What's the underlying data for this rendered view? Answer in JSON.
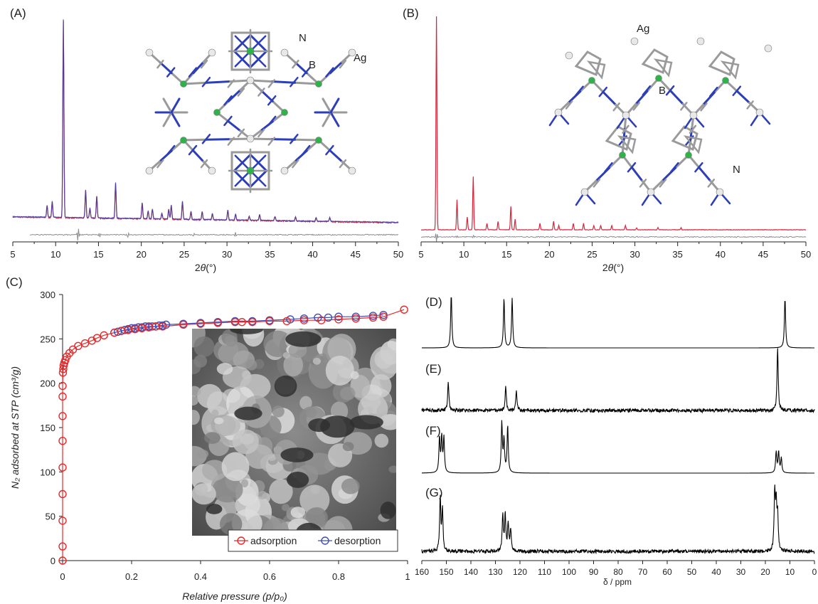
{
  "chart_data": [
    {
      "panel": "(A)",
      "type": "line",
      "xlabel_prefix": "2",
      "xlabel_theta": "θ",
      "xlabel_unit": "(°)",
      "xticks": [
        "5",
        "10",
        "15",
        "20",
        "25",
        "30",
        "35",
        "40",
        "45",
        "50"
      ],
      "xlim": [
        5,
        50
      ],
      "y_visible": false,
      "series": [
        {
          "color": "#d8253a",
          "peaks": [
            [
              9.0,
              0.06
            ],
            [
              9.6,
              0.08
            ],
            [
              10.9,
              1.0
            ],
            [
              13.5,
              0.14
            ],
            [
              14.0,
              0.05
            ],
            [
              14.8,
              0.11
            ],
            [
              17.0,
              0.18
            ],
            [
              20.1,
              0.08
            ],
            [
              20.8,
              0.04
            ],
            [
              21.3,
              0.05
            ],
            [
              22.4,
              0.03
            ],
            [
              23.2,
              0.05
            ],
            [
              23.5,
              0.07
            ],
            [
              24.8,
              0.09
            ],
            [
              25.8,
              0.04
            ],
            [
              27.1,
              0.04
            ],
            [
              28.3,
              0.03
            ],
            [
              30.1,
              0.05
            ],
            [
              31.0,
              0.03
            ],
            [
              32.6,
              0.02
            ],
            [
              33.8,
              0.03
            ],
            [
              35.6,
              0.02
            ],
            [
              38.0,
              0.02
            ],
            [
              40.4,
              0.02
            ],
            [
              42.0,
              0.02
            ]
          ]
        },
        {
          "color": "#2d40b4"
        }
      ],
      "residual_color": "#8c8c8c",
      "structure_labels": [
        "N",
        "B",
        "Ag"
      ],
      "structure_colors": {
        "metal": "#e8e8e8",
        "boron": "#2db34a",
        "nitrogen": "#2c3eb8",
        "carbon": "#9a9a9a"
      }
    },
    {
      "panel": "(B)",
      "type": "line",
      "xlabel_prefix": "2",
      "xlabel_theta": "θ",
      "xlabel_unit": "(°)",
      "xticks": [
        "5",
        "10",
        "15",
        "20",
        "25",
        "30",
        "35",
        "40",
        "45",
        "50"
      ],
      "xlim": [
        5,
        50
      ],
      "y_visible": false,
      "series": [
        {
          "color": "#d8253a",
          "peaks": [
            [
              6.8,
              1.0
            ],
            [
              9.2,
              0.14
            ],
            [
              10.4,
              0.06
            ],
            [
              11.1,
              0.25
            ],
            [
              12.7,
              0.03
            ],
            [
              14.0,
              0.04
            ],
            [
              15.5,
              0.11
            ],
            [
              16.0,
              0.05
            ],
            [
              18.9,
              0.03
            ],
            [
              20.5,
              0.04
            ],
            [
              21.1,
              0.02
            ],
            [
              22.8,
              0.03
            ],
            [
              24.0,
              0.03
            ],
            [
              25.2,
              0.02
            ],
            [
              26.0,
              0.02
            ],
            [
              27.3,
              0.02
            ],
            [
              28.9,
              0.02
            ],
            [
              30.2,
              0.01
            ],
            [
              32.7,
              0.01
            ],
            [
              35.4,
              0.01
            ]
          ]
        }
      ],
      "residual_color": "#8c8c8c",
      "structure_labels": [
        "Ag",
        "B",
        "N"
      ]
    },
    {
      "panel": "(C)",
      "type": "scatter",
      "ylabel": "N₂ adsorbed at STP (cm³/g)",
      "xlabel": "Relative pressure (p/p₀)",
      "xlim": [
        0,
        1
      ],
      "ylim": [
        0,
        300
      ],
      "xticks": [
        "0",
        "0.2",
        "0.4",
        "0.6",
        "0.8",
        "1"
      ],
      "yticks": [
        "0",
        "50",
        "100",
        "150",
        "200",
        "250",
        "300"
      ],
      "legend_position": "bottom-right",
      "series": [
        {
          "name": "adsorption",
          "color": "#e8282a",
          "x": [
            0.0,
            0.0,
            0.0,
            0.0,
            0.0,
            0.0,
            0.0,
            0.0,
            0.0,
            0.001,
            0.002,
            0.003,
            0.005,
            0.008,
            0.012,
            0.02,
            0.03,
            0.045,
            0.065,
            0.085,
            0.1,
            0.12,
            0.15,
            0.17,
            0.19,
            0.21,
            0.23,
            0.25,
            0.27,
            0.29,
            0.35,
            0.4,
            0.45,
            0.5,
            0.52,
            0.55,
            0.6,
            0.65,
            0.7,
            0.75,
            0.8,
            0.85,
            0.9,
            0.93,
            0.99
          ],
          "y": [
            0,
            16,
            45,
            75,
            105,
            135,
            163,
            185,
            197,
            212,
            216,
            220,
            223,
            226,
            230,
            234,
            238,
            242,
            245,
            248,
            251,
            254,
            257,
            259,
            260,
            261,
            262,
            263,
            264,
            264,
            266,
            267,
            268,
            269,
            269,
            269,
            270,
            270,
            271,
            271,
            272,
            273,
            274,
            275,
            283
          ]
        },
        {
          "name": "desorption",
          "color": "#3f4fb3",
          "x": [
            0.93,
            0.9,
            0.85,
            0.8,
            0.77,
            0.74,
            0.7,
            0.66,
            0.6,
            0.55,
            0.5,
            0.45,
            0.4,
            0.35,
            0.3,
            0.29,
            0.28,
            0.27,
            0.26,
            0.25,
            0.24,
            0.23,
            0.22,
            0.21,
            0.2,
            0.19,
            0.18,
            0.17,
            0.16,
            0.15
          ],
          "y": [
            277,
            276,
            275,
            275,
            274,
            274,
            273,
            272,
            271,
            270,
            270,
            269,
            268,
            267,
            266,
            265,
            265,
            264,
            264,
            264,
            264,
            263,
            263,
            262,
            262,
            261,
            260,
            259,
            258,
            257
          ]
        }
      ],
      "inset": "SEM micrograph with white scale bar"
    },
    {
      "panel": "NMR",
      "type": "line",
      "xlabel": "δ / ppm",
      "xlim": [
        160,
        0
      ],
      "xticks": [
        "160",
        "150",
        "140",
        "130",
        "120",
        "110",
        "100",
        "90",
        "80",
        "70",
        "60",
        "50",
        "40",
        "30",
        "20",
        "10",
        "0"
      ],
      "spectra": [
        {
          "label": "(D)",
          "peaks": [
            [
              148.0,
              1.0
            ],
            [
              126.5,
              0.93
            ],
            [
              123.2,
              0.93
            ],
            [
              12.0,
              0.93
            ]
          ],
          "noisy": false
        },
        {
          "label": "(E)",
          "peaks": [
            [
              149.2,
              0.45
            ],
            [
              125.8,
              0.4
            ],
            [
              121.5,
              0.32
            ],
            [
              15.0,
              1.0
            ]
          ],
          "noisy": true
        },
        {
          "label": "(F)",
          "peaks": [
            [
              152.8,
              0.7
            ],
            [
              151.9,
              0.7
            ],
            [
              151.0,
              0.7
            ],
            [
              127.4,
              1.0
            ],
            [
              126.5,
              0.65
            ],
            [
              125.0,
              0.95
            ],
            [
              15.6,
              0.42
            ],
            [
              14.6,
              0.42
            ],
            [
              13.5,
              0.3
            ]
          ],
          "noisy": false
        },
        {
          "label": "(G)",
          "peaks": [
            [
              152.5,
              0.88
            ],
            [
              151.6,
              0.7
            ],
            [
              127.0,
              0.6
            ],
            [
              126.0,
              0.6
            ],
            [
              124.8,
              0.45
            ],
            [
              123.8,
              0.35
            ],
            [
              16.2,
              0.95
            ],
            [
              15.6,
              0.75
            ],
            [
              15.0,
              0.6
            ]
          ],
          "noisy": true
        }
      ],
      "line_color": "#000000"
    }
  ]
}
